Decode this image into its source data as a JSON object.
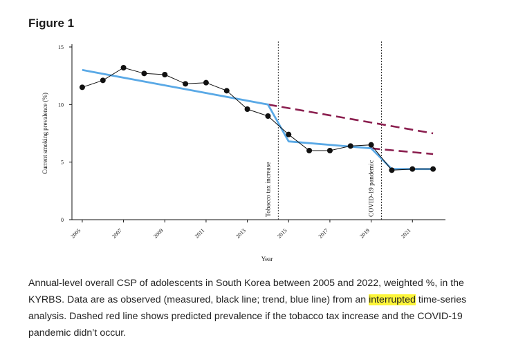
{
  "figure": {
    "label": "Figure 1"
  },
  "caption": {
    "part1": "Annual-level overall CSP of adolescents in South Korea between 2005 and 2022, weighted %, in the KYRBS. Data are as observed (measured, black line; trend, blue line) from an ",
    "highlight": "interrupted",
    "part2": " time-series analysis. Dashed red line shows predicted prevalence if the tobacco tax increase and the COVID-19 pandemic didn’t occur."
  },
  "colors": {
    "observed": "#111111",
    "trend": "#5aa9e6",
    "predicted": "#8b1f4f",
    "highlight": "#fdf53a"
  },
  "chart_data": {
    "type": "line",
    "title": "",
    "xlabel": "Year",
    "ylabel": "Current smoking prevalence (%)",
    "xlim": [
      2004.5,
      2022.6
    ],
    "ylim": [
      0,
      15
    ],
    "y_ticks": [
      0,
      5,
      10,
      15
    ],
    "x_ticks": [
      2005,
      2007,
      2009,
      2011,
      2013,
      2015,
      2017,
      2019,
      2021
    ],
    "series": [
      {
        "name": "Observed",
        "style": "solid-markers",
        "x": [
          2005,
          2006,
          2007,
          2008,
          2009,
          2010,
          2011,
          2012,
          2013,
          2014,
          2015,
          2016,
          2017,
          2018,
          2019,
          2020,
          2021,
          2022
        ],
        "y": [
          11.5,
          12.1,
          13.2,
          12.7,
          12.6,
          11.8,
          11.9,
          11.2,
          9.6,
          9.0,
          7.4,
          6.0,
          6.0,
          6.4,
          6.5,
          4.3,
          4.4,
          4.4
        ]
      },
      {
        "name": "Trend",
        "style": "solid",
        "x": [
          2005,
          2014,
          2015,
          2019,
          2020,
          2022
        ],
        "y": [
          13.0,
          10.0,
          6.8,
          6.2,
          4.4,
          4.4
        ]
      },
      {
        "name": "Predicted (no tax increase)",
        "style": "dashed",
        "x": [
          2014,
          2022
        ],
        "y": [
          10.0,
          7.5
        ]
      },
      {
        "name": "Predicted (no COVID-19)",
        "style": "dashed",
        "x": [
          2019,
          2022
        ],
        "y": [
          6.2,
          5.7
        ]
      }
    ],
    "interventions": [
      {
        "x": 2014.5,
        "label": "Tobacco tax increase"
      },
      {
        "x": 2019.5,
        "label": "COVID-19 pandemic"
      }
    ]
  }
}
